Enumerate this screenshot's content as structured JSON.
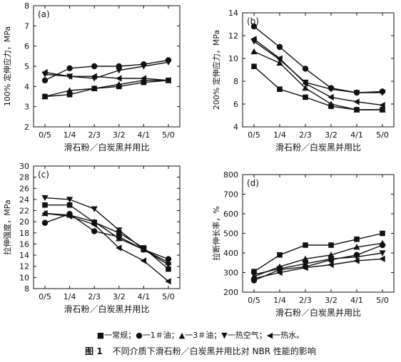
{
  "chart_data": [
    {
      "type": "line",
      "panel_label": "(a)",
      "ylabel": "100% 定伸应力，MPa",
      "xlabel": "滑石粉／白炭黑并用比",
      "categories": [
        "0/5",
        "1/4",
        "2/3",
        "3/2",
        "4/1",
        "5/0"
      ],
      "ylim": [
        2,
        8
      ],
      "yticks": [
        2,
        3,
        4,
        5,
        6,
        7,
        8
      ],
      "series": [
        {
          "marker": "square",
          "values": [
            3.5,
            3.6,
            3.9,
            4.0,
            4.2,
            4.3
          ]
        },
        {
          "marker": "circle",
          "values": [
            4.3,
            4.9,
            5.0,
            5.0,
            5.1,
            5.3
          ]
        },
        {
          "marker": "triangle-up",
          "values": [
            3.5,
            3.8,
            3.9,
            4.1,
            4.3,
            4.3
          ]
        },
        {
          "marker": "triangle-down",
          "values": [
            4.6,
            4.5,
            4.4,
            4.8,
            5.0,
            5.2
          ]
        },
        {
          "marker": "triangle-left",
          "values": [
            4.7,
            4.5,
            4.5,
            4.4,
            4.4,
            4.3
          ]
        }
      ]
    },
    {
      "type": "line",
      "panel_label": "(b)",
      "ylabel": "200% 定伸应力，MPa",
      "xlabel": "滑石粉／白炭黑并用比",
      "categories": [
        "0/5",
        "1/4",
        "2/3",
        "3/2",
        "4/1",
        "5/0"
      ],
      "ylim": [
        4,
        14
      ],
      "yticks": [
        4,
        6,
        8,
        10,
        12,
        14
      ],
      "series": [
        {
          "marker": "square",
          "values": [
            9.3,
            7.3,
            6.6,
            5.8,
            5.5,
            5.5
          ]
        },
        {
          "marker": "circle",
          "values": [
            12.8,
            11.0,
            9.1,
            7.4,
            7.0,
            7.1
          ]
        },
        {
          "marker": "triangle-up",
          "values": [
            10.6,
            9.6,
            7.4,
            6.0,
            5.5,
            5.5
          ]
        },
        {
          "marker": "triangle-down",
          "values": [
            11.5,
            9.9,
            7.9,
            7.3,
            7.0,
            7.0
          ]
        },
        {
          "marker": "triangle-left",
          "values": [
            11.7,
            10.0,
            7.8,
            6.6,
            6.2,
            5.9
          ]
        }
      ]
    },
    {
      "type": "line",
      "panel_label": "(c)",
      "ylabel": "拉伸强度，MPa",
      "xlabel": "滑石粉／白炭黑并用比",
      "categories": [
        "0/5",
        "1/4",
        "2/3",
        "3/2",
        "4/1",
        "5/0"
      ],
      "ylim": [
        8,
        30
      ],
      "yticks": [
        8,
        10,
        12,
        14,
        16,
        18,
        20,
        22,
        24,
        26,
        28,
        30
      ],
      "series": [
        {
          "marker": "square",
          "values": [
            23.0,
            23.0,
            19.9,
            18.0,
            15.3,
            11.5
          ]
        },
        {
          "marker": "circle",
          "values": [
            19.8,
            21.4,
            18.3,
            17.3,
            15.0,
            13.3
          ]
        },
        {
          "marker": "triangle-up",
          "values": [
            21.5,
            21.2,
            20.0,
            17.0,
            15.0,
            12.7
          ]
        },
        {
          "marker": "triangle-down",
          "values": [
            24.3,
            24.0,
            22.3,
            18.5,
            15.0,
            12.3
          ]
        },
        {
          "marker": "triangle-left",
          "values": [
            21.5,
            21.0,
            19.5,
            15.3,
            13.0,
            9.3
          ]
        }
      ]
    },
    {
      "type": "line",
      "panel_label": "(d)",
      "ylabel": "拉断伸长率，%",
      "xlabel": "滑石粉／白炭黑并用比",
      "categories": [
        "0/5",
        "1/4",
        "2/3",
        "3/2",
        "4/1",
        "5/0"
      ],
      "ylim": [
        200,
        800
      ],
      "yticks": [
        200,
        300,
        400,
        500,
        600,
        700,
        800
      ],
      "series": [
        {
          "marker": "square",
          "values": [
            305,
            390,
            440,
            440,
            470,
            500
          ]
        },
        {
          "marker": "circle",
          "values": [
            260,
            315,
            330,
            365,
            390,
            440
          ]
        },
        {
          "marker": "triangle-up",
          "values": [
            280,
            330,
            370,
            390,
            430,
            450
          ]
        },
        {
          "marker": "triangle-down",
          "values": [
            290,
            320,
            345,
            370,
            380,
            400
          ]
        },
        {
          "marker": "triangle-left",
          "values": [
            270,
            300,
            325,
            340,
            360,
            370
          ]
        }
      ]
    }
  ],
  "legend": {
    "items": [
      {
        "marker": "square",
        "label": "一常规；"
      },
      {
        "marker": "circle",
        "label": "一1＃油；"
      },
      {
        "marker": "triangle-up",
        "label": "一3＃油；"
      },
      {
        "marker": "triangle-down",
        "label": "一热空气；"
      },
      {
        "marker": "triangle-left",
        "label": "一热水。"
      }
    ]
  },
  "caption": {
    "number": "图 1",
    "text": "不同介质下滑石粉／白炭黑并用比对 NBR 性能的影响"
  }
}
